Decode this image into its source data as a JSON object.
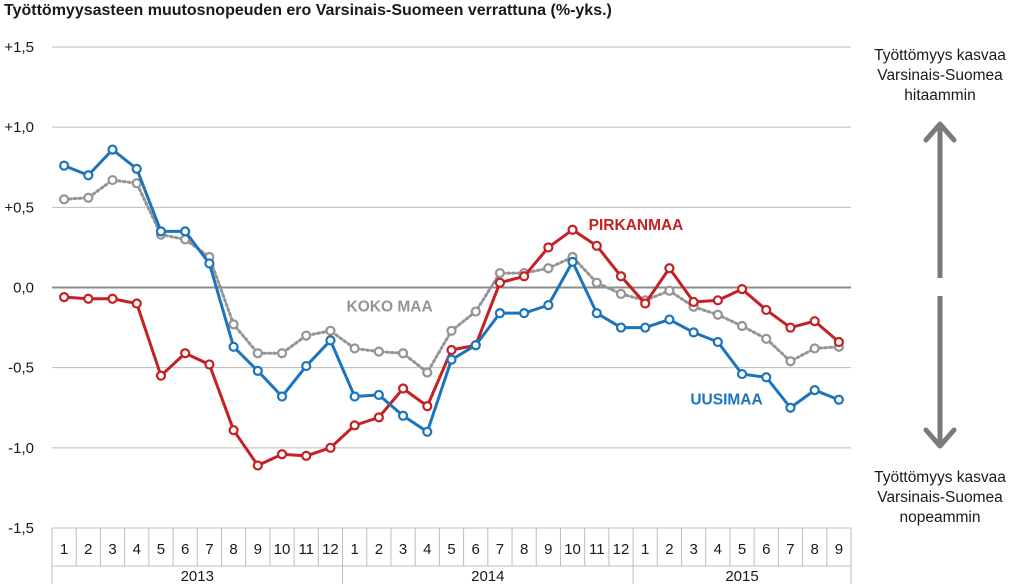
{
  "title": "Työttömyysasteen muutosnopeuden ero Varsinais-Suomeen verrattuna (%-yks.)",
  "notes": {
    "top": [
      "Työttömyys kasvaa",
      "Varsinais-Suomea",
      "hitaammin"
    ],
    "bottom": [
      "Työttömyys kasvaa",
      "Varsinais-Suomea",
      "nopeammin"
    ]
  },
  "colors": {
    "pirkanmaa": "#c42125",
    "uusimaa": "#1c75bc",
    "koko_maa": "#949494",
    "grid": "#bcbcbc",
    "zero": "#8c8c8c",
    "arrow": "#7a7a7a"
  },
  "chart_data": {
    "type": "line",
    "ylim": [
      -1.5,
      1.5
    ],
    "yticks": [
      1.5,
      1.0,
      0.5,
      0.0,
      -0.5,
      -1.0,
      -1.5
    ],
    "ytick_labels": [
      "+1,5",
      "+1,0",
      "+0,5",
      "0,0",
      "-0,5",
      "-1,0",
      "-1,5"
    ],
    "x": [
      "1",
      "2",
      "3",
      "4",
      "5",
      "6",
      "7",
      "8",
      "9",
      "10",
      "11",
      "12",
      "1",
      "2",
      "3",
      "4",
      "5",
      "6",
      "7",
      "8",
      "9",
      "10",
      "11",
      "12",
      "1",
      "2",
      "3",
      "4",
      "5",
      "6",
      "7",
      "8",
      "9"
    ],
    "years": [
      {
        "label": "2013",
        "start": 0,
        "count": 12
      },
      {
        "label": "2014",
        "start": 12,
        "count": 12
      },
      {
        "label": "2015",
        "start": 24,
        "count": 9
      }
    ],
    "grid": true,
    "series": [
      {
        "name": "PIRKANMAA",
        "style": "solid",
        "values": [
          -0.06,
          -0.07,
          -0.07,
          -0.1,
          -0.55,
          -0.41,
          -0.48,
          -0.89,
          -1.11,
          -1.04,
          -1.05,
          -1.0,
          -0.86,
          -0.81,
          -0.63,
          -0.74,
          -0.39,
          -0.36,
          0.03,
          0.07,
          0.25,
          0.36,
          0.26,
          0.07,
          -0.1,
          0.12,
          -0.09,
          -0.08,
          -0.01,
          -0.14,
          -0.25,
          -0.21,
          -0.34
        ]
      },
      {
        "name": "UUSIMAA",
        "style": "solid",
        "values": [
          0.76,
          0.7,
          0.86,
          0.74,
          0.35,
          0.35,
          0.15,
          -0.37,
          -0.52,
          -0.68,
          -0.49,
          -0.33,
          -0.68,
          -0.67,
          -0.8,
          -0.9,
          -0.45,
          -0.36,
          -0.16,
          -0.16,
          -0.11,
          0.16,
          -0.16,
          -0.25,
          -0.25,
          -0.2,
          -0.28,
          -0.34,
          -0.54,
          -0.56,
          -0.75,
          -0.64,
          -0.7
        ]
      },
      {
        "name": "KOKO MAA",
        "style": "dotted",
        "values": [
          0.55,
          0.56,
          0.67,
          0.65,
          0.33,
          0.3,
          0.19,
          -0.23,
          -0.41,
          -0.41,
          -0.3,
          -0.27,
          -0.38,
          -0.4,
          -0.41,
          -0.53,
          -0.27,
          -0.15,
          0.09,
          0.09,
          0.12,
          0.19,
          0.03,
          -0.04,
          -0.08,
          -0.02,
          -0.12,
          -0.17,
          -0.24,
          -0.32,
          -0.46,
          -0.38,
          -0.37
        ]
      }
    ]
  }
}
